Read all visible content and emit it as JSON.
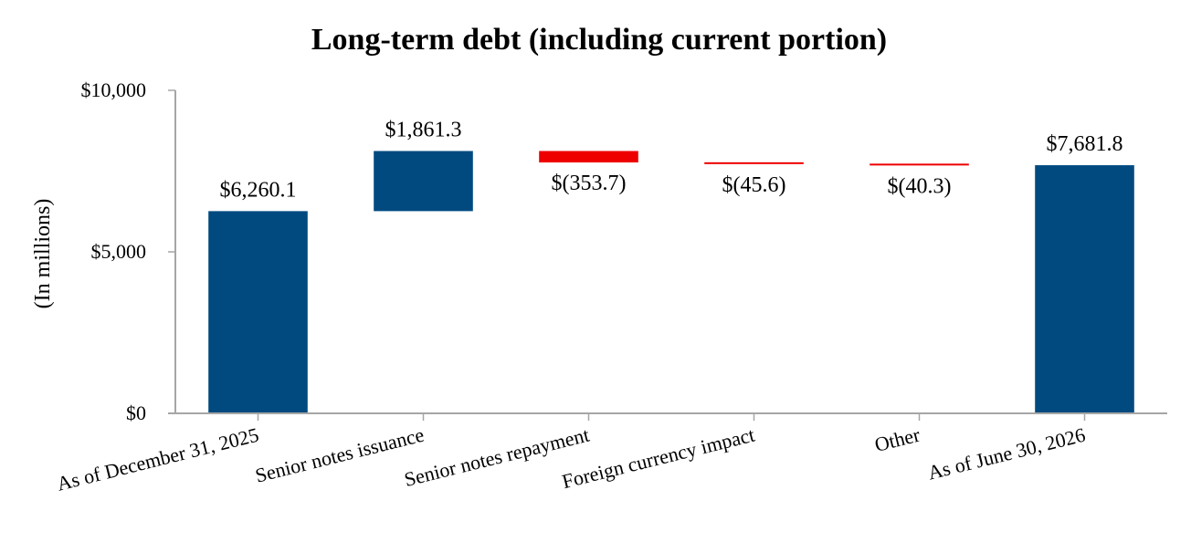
{
  "chart_data": {
    "type": "bar",
    "subtype": "waterfall",
    "title": "Long-term debt (including current portion)",
    "ylabel": "(In millions)",
    "xlabel": "",
    "ylim": [
      0,
      10000
    ],
    "yticks": [
      {
        "value": 0,
        "label": "$0"
      },
      {
        "value": 5000,
        "label": "$5,000"
      },
      {
        "value": 10000,
        "label": "$10,000"
      }
    ],
    "grid": false,
    "legend": "none",
    "colors": {
      "total": "#004a80",
      "increase": "#004a80",
      "decrease": "#ee0000",
      "axis": "#a6a6a6"
    },
    "bars": [
      {
        "category": "As of December 31, 2025",
        "kind": "total",
        "value": 6260.1,
        "label": "$6,260.1"
      },
      {
        "category": "Senior notes issuance",
        "kind": "increase",
        "value": 1861.3,
        "label": "$1,861.3"
      },
      {
        "category": "Senior notes repayment",
        "kind": "decrease",
        "value": -353.7,
        "label": "$(353.7)"
      },
      {
        "category": "Foreign currency impact",
        "kind": "decrease",
        "value": -45.6,
        "label": "$(45.6)"
      },
      {
        "category": "Other",
        "kind": "decrease",
        "value": -40.3,
        "label": "$(40.3)"
      },
      {
        "category": "As of June 30, 2026",
        "kind": "total",
        "value": 7681.8,
        "label": "$7,681.8"
      }
    ]
  }
}
